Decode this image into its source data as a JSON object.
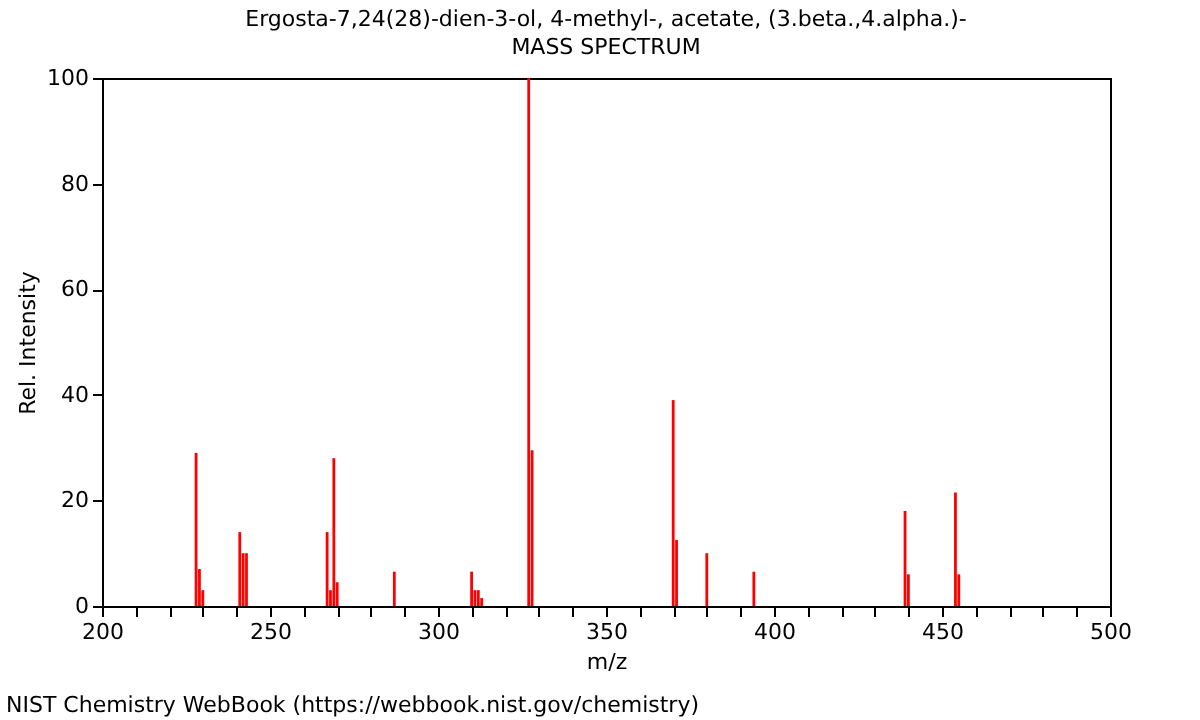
{
  "chart_data": {
    "type": "bar",
    "title": "Ergosta-7,24(28)-dien-3-ol, 4-methyl-, acetate, (3.beta.,4.alpha.)-",
    "subtitle": "MASS SPECTRUM",
    "xlabel": "m/z",
    "ylabel": "Rel. Intensity",
    "annotations": [
      "NIST Chemistry WebBook (https://webbook.nist.gov/chemistry)"
    ],
    "x": [
      228,
      229,
      230,
      241,
      242,
      243,
      267,
      268,
      269,
      270,
      287,
      310,
      311,
      312,
      313,
      327,
      328,
      370,
      371,
      380,
      394,
      439,
      440,
      454,
      455
    ],
    "series": [
      {
        "color": "#ff0000",
        "values": [
          29,
          7,
          3,
          14,
          10,
          10,
          14,
          3,
          28,
          4.5,
          6.5,
          6.5,
          3,
          3,
          1.5,
          100,
          29.5,
          39,
          12.5,
          10,
          6.5,
          18,
          6,
          21.5,
          6
        ]
      }
    ],
    "xlim": [
      200,
      500
    ],
    "xticks": [
      200,
      {
        "value": 210,
        "label": null
      },
      {
        "value": 220,
        "label": null
      },
      {
        "value": 230,
        "label": null
      },
      {
        "value": 240,
        "label": null
      },
      250,
      {
        "value": 260,
        "label": null
      },
      {
        "value": 270,
        "label": null
      },
      {
        "value": 280,
        "label": null
      },
      {
        "value": 290,
        "label": null
      },
      300,
      {
        "value": 310,
        "label": null
      },
      {
        "value": 320,
        "label": null
      },
      {
        "value": 330,
        "label": null
      },
      {
        "value": 340,
        "label": null
      },
      350,
      {
        "value": 360,
        "label": null
      },
      {
        "value": 370,
        "label": null
      },
      {
        "value": 380,
        "label": null
      },
      {
        "value": 390,
        "label": null
      },
      400,
      {
        "value": 410,
        "label": null
      },
      {
        "value": 420,
        "label": null
      },
      {
        "value": 430,
        "label": null
      },
      {
        "value": 440,
        "label": null
      },
      450,
      {
        "value": 460,
        "label": null
      },
      {
        "value": 470,
        "label": null
      },
      {
        "value": 480,
        "label": null
      },
      {
        "value": 490,
        "label": null
      },
      500
    ],
    "ylim": [
      0,
      100
    ],
    "yticks": [
      0,
      20,
      40,
      60,
      80,
      100
    ],
    "grid": false,
    "legend": false
  }
}
